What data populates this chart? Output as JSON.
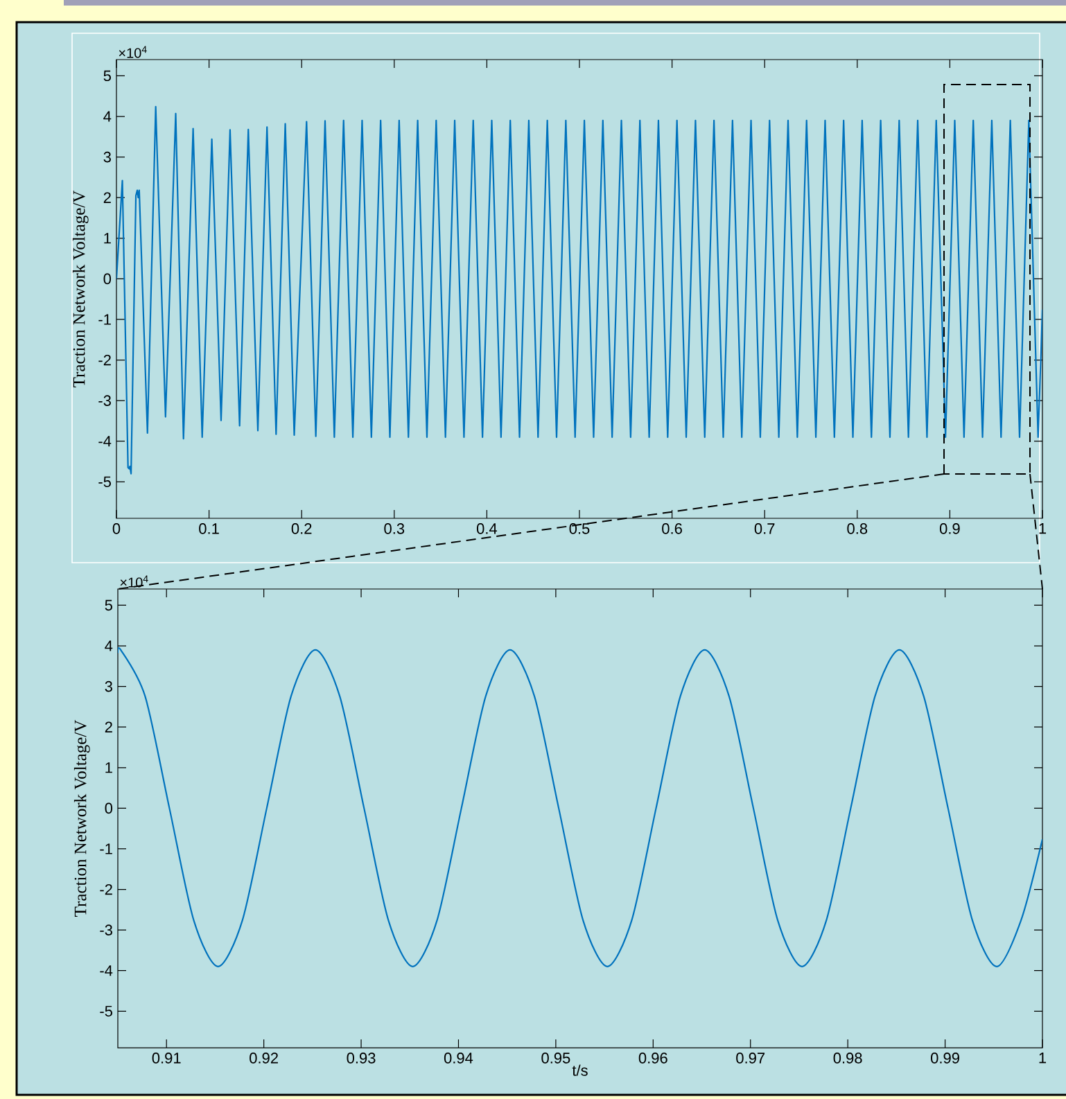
{
  "chart_data": [
    {
      "type": "line",
      "ylabel": "Traction Network Voltage/V",
      "annotations": [
        "×10$^{4}$"
      ],
      "color": "#0072bd",
      "marker": "none",
      "xlim": [
        0,
        1
      ],
      "ylim": [
        -5.9,
        5.4
      ],
      "xticks": [
        0,
        0.1,
        0.2,
        0.3,
        0.4,
        0.5,
        0.6,
        0.7,
        0.8,
        0.9,
        1
      ],
      "yticks": [
        -5,
        -4,
        -3,
        -2,
        -1,
        0,
        1,
        2,
        3,
        4,
        5
      ],
      "x": [
        0,
        0.0064,
        0.0125,
        0.0138,
        0.0145,
        0.0158,
        0.021,
        0.0225,
        0.0235,
        0.0246,
        0.0335,
        0.0424,
        0.053,
        0.064,
        0.0724,
        0.0828,
        0.0926,
        0.103,
        0.113,
        0.1227,
        0.133,
        0.1424,
        0.1527,
        0.1626,
        0.1724,
        0.1823,
        0.192,
        0.2053,
        0.2153,
        0.2253,
        0.2353,
        0.2453,
        0.2553,
        0.2653,
        0.2753,
        0.2853,
        0.2953,
        0.3053,
        0.3153,
        0.3253,
        0.3353,
        0.3453,
        0.3553,
        0.3653,
        0.3753,
        0.3853,
        0.3953,
        0.4053,
        0.4153,
        0.4253,
        0.4353,
        0.4453,
        0.4553,
        0.4653,
        0.4753,
        0.4853,
        0.4953,
        0.5053,
        0.5153,
        0.5253,
        0.5353,
        0.5453,
        0.5553,
        0.5653,
        0.5753,
        0.5853,
        0.5953,
        0.6053,
        0.6153,
        0.6253,
        0.6353,
        0.6453,
        0.6553,
        0.6653,
        0.6753,
        0.6853,
        0.6953,
        0.7053,
        0.7153,
        0.7253,
        0.7353,
        0.7453,
        0.7553,
        0.7653,
        0.7753,
        0.7853,
        0.7953,
        0.8053,
        0.8153,
        0.8253,
        0.8353,
        0.8453,
        0.8553,
        0.8653,
        0.8753,
        0.8853,
        0.8953,
        0.9053,
        0.9153,
        0.9253,
        0.9353,
        0.9453,
        0.9553,
        0.9653,
        0.9753,
        0.9853,
        0.9953,
        1
      ],
      "values": [
        0,
        2.42,
        -4.65,
        -4.68,
        -4.62,
        -4.8,
        2.05,
        2.18,
        2.0,
        2.18,
        -3.8,
        4.24,
        -3.4,
        4.07,
        -3.94,
        3.7,
        -3.9,
        3.44,
        -3.49,
        3.67,
        -3.62,
        3.68,
        -3.74,
        3.74,
        -3.83,
        3.82,
        -3.85,
        3.87,
        -3.88,
        3.89,
        -3.9,
        3.9,
        -3.9,
        3.9,
        -3.9,
        3.9,
        -3.9,
        3.9,
        -3.9,
        3.9,
        -3.9,
        3.9,
        -3.9,
        3.9,
        -3.9,
        3.9,
        -3.9,
        3.9,
        -3.9,
        3.9,
        -3.9,
        3.9,
        -3.9,
        3.9,
        -3.9,
        3.9,
        -3.9,
        3.9,
        -3.9,
        3.9,
        -3.9,
        3.9,
        -3.9,
        3.9,
        -3.9,
        3.9,
        -3.9,
        3.9,
        -3.9,
        3.9,
        -3.9,
        3.9,
        -3.9,
        3.9,
        -3.9,
        3.9,
        -3.9,
        3.9,
        -3.9,
        3.9,
        -3.9,
        3.9,
        -3.9,
        3.9,
        -3.9,
        3.9,
        -3.9,
        3.9,
        -3.9,
        3.9,
        -3.9,
        3.9,
        -3.9,
        3.9,
        -3.9,
        3.9,
        -3.9,
        3.9,
        -3.9,
        3.9,
        -3.9,
        3.9,
        -3.9,
        3.9,
        -3.9,
        3.9,
        -3.9,
        -0.76
      ]
    },
    {
      "type": "line",
      "ylabel": "Traction Network Voltage/V",
      "xlabel": "t/s",
      "annotations": [
        "×10$^{4}$"
      ],
      "color": "#0072bd",
      "marker": "none",
      "xlim": [
        0.905,
        1
      ],
      "ylim": [
        -5.9,
        5.4
      ],
      "xticks": [
        0.91,
        0.92,
        0.93,
        0.94,
        0.95,
        0.96,
        0.97,
        0.98,
        0.99,
        1
      ],
      "yticks": [
        -5,
        -4,
        -3,
        -2,
        -1,
        0,
        1,
        2,
        3,
        4,
        5
      ],
      "x": [
        0.905,
        0.9053,
        0.9078,
        0.9103,
        0.9128,
        0.9153,
        0.9178,
        0.9203,
        0.9228,
        0.9253,
        0.9278,
        0.9303,
        0.9328,
        0.9353,
        0.9378,
        0.9403,
        0.9428,
        0.9453,
        0.9478,
        0.9503,
        0.9528,
        0.9553,
        0.9578,
        0.9603,
        0.9628,
        0.9653,
        0.9678,
        0.9703,
        0.9728,
        0.9753,
        0.9778,
        0.9803,
        0.9828,
        0.9853,
        0.9878,
        0.9903,
        0.9928,
        0.9953,
        0.9978,
        1
      ],
      "values": [
        3.82,
        3.9,
        2.76,
        0,
        -2.76,
        -3.9,
        -2.76,
        0,
        2.76,
        3.9,
        2.76,
        0,
        -2.76,
        -3.9,
        -2.76,
        0,
        2.76,
        3.9,
        2.76,
        0,
        -2.76,
        -3.9,
        -2.76,
        0,
        2.76,
        3.9,
        2.76,
        0,
        -2.76,
        -3.9,
        -2.76,
        0,
        2.76,
        3.9,
        2.76,
        0,
        -2.76,
        -3.9,
        -2.76,
        -0.76
      ]
    }
  ]
}
